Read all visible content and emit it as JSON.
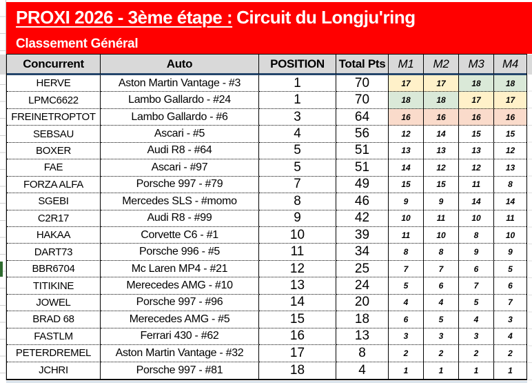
{
  "banner": {
    "title_underlined": "PROXI 2026 - 3ème étape :",
    "title_rest": "Circuit du Longju'ring",
    "subtitle": "Classement Général"
  },
  "table": {
    "headers": [
      "Concurrent",
      "Auto",
      "POSITION",
      "Total Pts",
      "M1",
      "M2",
      "M3",
      "M4"
    ],
    "rows": [
      {
        "concurrent": "HERVE",
        "auto": "Aston Martin Vantage - #3",
        "position": "1",
        "total": "70",
        "m": [
          "17",
          "17",
          "18",
          "18"
        ],
        "m_colors": [
          "yellow",
          "yellow",
          "green",
          "green"
        ]
      },
      {
        "concurrent": "LPMC6622",
        "auto": "Lambo Gallardo - #24",
        "position": "1",
        "total": "70",
        "m": [
          "18",
          "18",
          "17",
          "17"
        ],
        "m_colors": [
          "green",
          "green",
          "yellow",
          "yellow"
        ]
      },
      {
        "concurrent": "FREINETROPTOT",
        "auto": "Lambo Gallardo - #6",
        "position": "3",
        "total": "64",
        "m": [
          "16",
          "16",
          "16",
          "16"
        ],
        "m_colors": [
          "salmon",
          "salmon",
          "salmon",
          "salmon"
        ]
      },
      {
        "concurrent": "SEBSAU",
        "auto": "Ascari - #5",
        "position": "4",
        "total": "56",
        "m": [
          "12",
          "14",
          "15",
          "15"
        ],
        "m_colors": [
          "",
          "",
          "",
          ""
        ]
      },
      {
        "concurrent": "BOXER",
        "auto": "Audi R8 - #64",
        "position": "5",
        "total": "51",
        "m": [
          "13",
          "13",
          "13",
          "12"
        ],
        "m_colors": [
          "",
          "",
          "",
          ""
        ]
      },
      {
        "concurrent": "FAE",
        "auto": "Ascari - #97",
        "position": "5",
        "total": "51",
        "m": [
          "14",
          "12",
          "12",
          "13"
        ],
        "m_colors": [
          "",
          "",
          "",
          ""
        ]
      },
      {
        "concurrent": "FORZA ALFA",
        "auto": "Porsche 997 - #79",
        "position": "7",
        "total": "49",
        "m": [
          "15",
          "15",
          "11",
          "8"
        ],
        "m_colors": [
          "",
          "",
          "",
          ""
        ]
      },
      {
        "concurrent": "SGEBI",
        "auto": "Mercedes SLS - #momo",
        "position": "8",
        "total": "46",
        "m": [
          "9",
          "9",
          "14",
          "14"
        ],
        "m_colors": [
          "",
          "",
          "",
          ""
        ]
      },
      {
        "concurrent": "C2R17",
        "auto": "Audi R8 - #99",
        "position": "9",
        "total": "42",
        "m": [
          "10",
          "11",
          "10",
          "11"
        ],
        "m_colors": [
          "",
          "",
          "",
          ""
        ]
      },
      {
        "concurrent": "HAKAA",
        "auto": "Corvette C6 - #1",
        "position": "10",
        "total": "39",
        "m": [
          "11",
          "10",
          "8",
          "10"
        ],
        "m_colors": [
          "",
          "",
          "",
          ""
        ]
      },
      {
        "concurrent": "DART73",
        "auto": "Porsche 996 - #5",
        "position": "11",
        "total": "34",
        "m": [
          "8",
          "8",
          "9",
          "9"
        ],
        "m_colors": [
          "",
          "",
          "",
          ""
        ]
      },
      {
        "concurrent": "BBR6704",
        "auto": "Mc Laren MP4 - #21",
        "position": "12",
        "total": "25",
        "m": [
          "7",
          "7",
          "6",
          "5"
        ],
        "m_colors": [
          "",
          "",
          "",
          ""
        ]
      },
      {
        "concurrent": "TITIKINE",
        "auto": "Merecedes AMG - #10",
        "position": "13",
        "total": "24",
        "m": [
          "5",
          "6",
          "7",
          "6"
        ],
        "m_colors": [
          "",
          "",
          "",
          ""
        ]
      },
      {
        "concurrent": "JOWEL",
        "auto": "Porsche 997 - #96",
        "position": "14",
        "total": "20",
        "m": [
          "4",
          "4",
          "5",
          "7"
        ],
        "m_colors": [
          "",
          "",
          "",
          ""
        ]
      },
      {
        "concurrent": "BRAD 68",
        "auto": "Merecedes AMG - #5",
        "position": "15",
        "total": "18",
        "m": [
          "6",
          "5",
          "4",
          "3"
        ],
        "m_colors": [
          "",
          "",
          "",
          ""
        ]
      },
      {
        "concurrent": "FASTLM",
        "auto": "Ferrari 430 - #62",
        "position": "16",
        "total": "13",
        "m": [
          "3",
          "3",
          "3",
          "4"
        ],
        "m_colors": [
          "",
          "",
          "",
          ""
        ]
      },
      {
        "concurrent": "PETERDREMEL",
        "auto": "Aston Martin Vantage - #32",
        "position": "17",
        "total": "8",
        "m": [
          "2",
          "2",
          "2",
          "2"
        ],
        "m_colors": [
          "",
          "",
          "",
          ""
        ]
      },
      {
        "concurrent": "JCHRI",
        "auto": "Porsche 997 - #81",
        "position": "18",
        "total": "4",
        "m": [
          "1",
          "1",
          "1",
          "1"
        ],
        "m_colors": [
          "",
          "",
          "",
          ""
        ]
      }
    ]
  },
  "colors": {
    "banner_red": "#FF0000",
    "banner_text": "#FFFFFF",
    "header_bg": "#D9D9D9",
    "header_line": "#24456B",
    "yellow": "#FFF1C9",
    "green": "#DAE9D8",
    "salmon": "#FADBCB",
    "marker_green": "#2F6B2F"
  }
}
